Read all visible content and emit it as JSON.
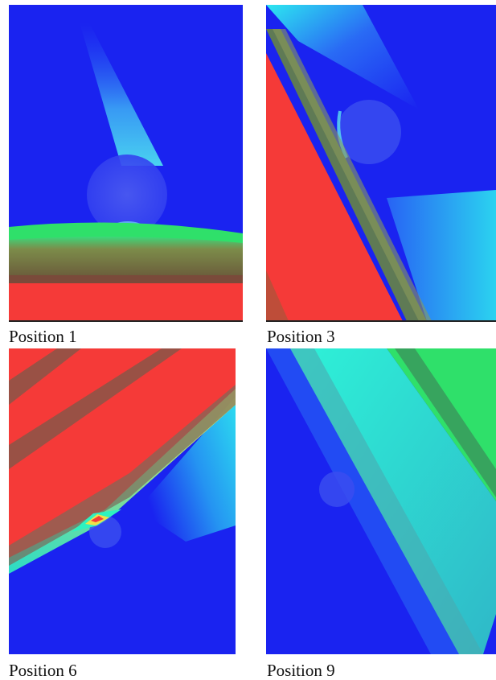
{
  "panels": [
    {
      "id": "p1",
      "caption": "Position 1"
    },
    {
      "id": "p3",
      "caption": "Position 3"
    },
    {
      "id": "p6",
      "caption": "Position 6"
    },
    {
      "id": "p9",
      "caption": "Position 9"
    }
  ],
  "colors": {
    "background_blue": "#1a23f0",
    "cyan": "#2ef2f0",
    "red": "#f53a38",
    "green": "#2fe06a",
    "olive": "#6a7a3a"
  }
}
